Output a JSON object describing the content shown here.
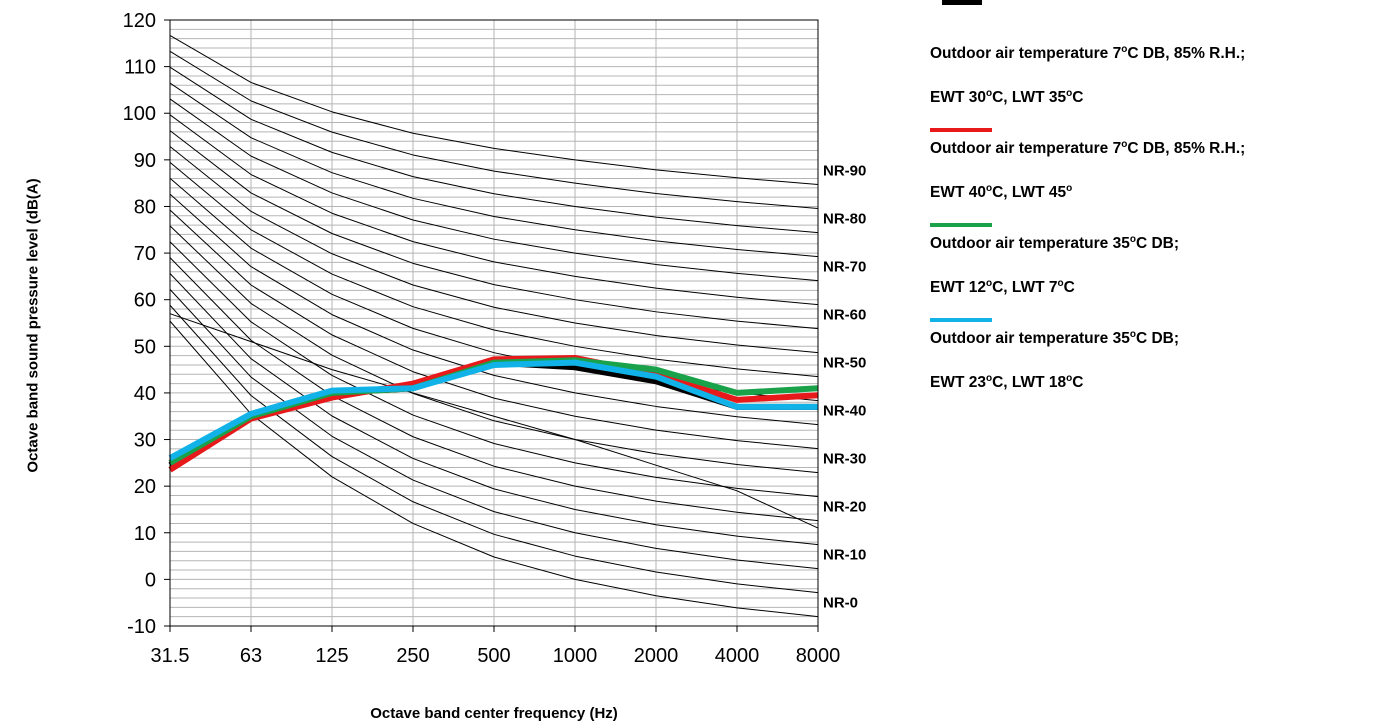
{
  "chart_data": {
    "type": "line",
    "title": "",
    "xlabel": "Octave band center frequency (Hz)",
    "ylabel": "Octave band sound pressure level (dB(A)",
    "categories": [
      "31.5",
      "63",
      "125",
      "250",
      "500",
      "1000",
      "2000",
      "4000",
      "8000"
    ],
    "ylim": [
      -10,
      120
    ],
    "yticks": [
      -10,
      0,
      10,
      20,
      30,
      40,
      50,
      60,
      70,
      80,
      90,
      100,
      110,
      120
    ],
    "grid": "horizontal minor lines every 2 dB, vertical lines at each band",
    "legend_position": "right",
    "series": [
      {
        "name_lines": [
          "Outdoor air temperature 7|o|C DB, 85% R.H.;",
          "EWT 30|o|C, LWT 35|o|C"
        ],
        "color": "#000000",
        "values": [
          24.5,
          35,
          40,
          41,
          46.5,
          45.5,
          42.5,
          37,
          37
        ]
      },
      {
        "name_lines": [
          "Outdoor air temperature 7|o|C DB, 85% R.H.;",
          "EWT 40|o|C, LWT 45|o|"
        ],
        "color": "#e8191b",
        "values": [
          23.5,
          34.5,
          39,
          42,
          47.2,
          47.5,
          44,
          38.5,
          39.5
        ]
      },
      {
        "name_lines": [
          "Outdoor air temperature 35|o|C DB;",
          "EWT 12|o|C, LWT 7|o|C"
        ],
        "color": "#1aa24a",
        "values": [
          25,
          35,
          40,
          41,
          46.5,
          47,
          45,
          40,
          41
        ]
      },
      {
        "name_lines": [
          "Outdoor air temperature 35|o|C DB;",
          "EWT 23|o|C, LWT 18|o|C"
        ],
        "color": "#10b2e8",
        "values": [
          26,
          35.5,
          40.5,
          41,
          46,
          46.5,
          43.5,
          37,
          37
        ]
      }
    ],
    "nr_curves": {
      "levels": [
        0,
        5,
        10,
        15,
        20,
        25,
        30,
        35,
        40,
        45,
        50,
        55,
        60,
        65,
        70,
        75,
        80,
        85,
        90
      ],
      "labels": [
        "NR-0",
        "NR-10",
        "NR-20",
        "NR-30",
        "NR-40",
        "NR-50",
        "NR-60",
        "NR-70",
        "NR-80",
        "NR-90"
      ],
      "color": "#000000",
      "a": [
        55.4,
        35.5,
        22,
        12,
        4.8,
        0,
        -3.5,
        -6.1,
        -8
      ],
      "b": [
        0.681,
        0.79,
        0.87,
        0.93,
        0.974,
        1.0,
        1.015,
        1.025,
        1.03
      ],
      "extra_line": [
        57,
        51,
        45,
        40,
        35,
        30,
        24.5,
        19,
        11
      ]
    }
  }
}
